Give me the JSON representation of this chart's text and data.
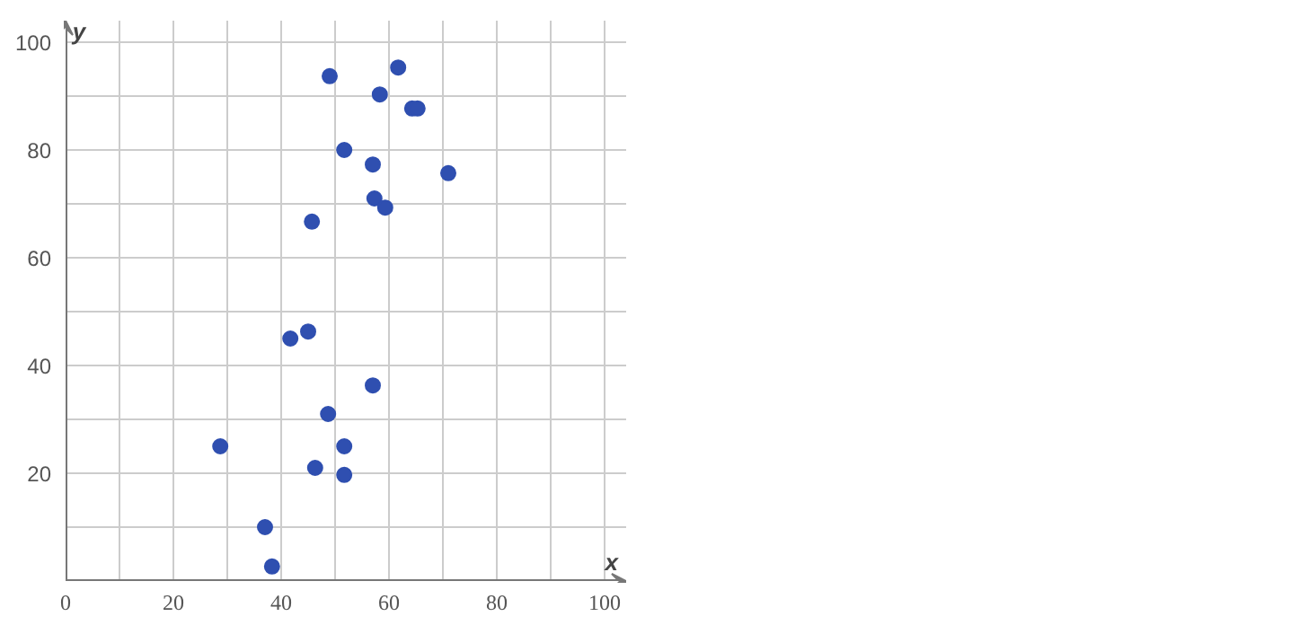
{
  "chart_data": {
    "type": "scatter",
    "xlabel": "x",
    "ylabel": "y",
    "x": [
      49,
      61.7,
      58.3,
      64.3,
      65.3,
      51.7,
      57,
      71,
      57.3,
      59.3,
      45.7,
      45,
      41.7,
      57,
      48.7,
      28.7,
      51.7,
      46.3,
      51.7,
      37,
      38.3
    ],
    "series": [
      {
        "color": "#2f4fb0",
        "values": [
          93.7,
          95.3,
          90.3,
          87.7,
          87.7,
          80,
          77.3,
          75.7,
          71,
          69.3,
          66.7,
          46.3,
          45,
          36.3,
          31,
          25,
          25,
          21,
          19.7,
          10,
          2.7
        ]
      }
    ],
    "xlim": [
      0,
      104
    ],
    "ylim": [
      0,
      104
    ],
    "xticks": [
      {
        "value": 0,
        "label": "0"
      },
      {
        "value": 10,
        "label": null
      },
      20,
      {
        "value": 30,
        "label": null
      },
      40,
      {
        "value": 50,
        "label": null
      },
      60,
      {
        "value": 70,
        "label": null
      },
      80,
      {
        "value": 90,
        "label": null
      },
      100
    ],
    "yticks": [
      {
        "value": 0,
        "label": null
      },
      {
        "value": 10,
        "label": null
      },
      20,
      {
        "value": 30,
        "label": null
      },
      40,
      {
        "value": 50,
        "label": null
      },
      60,
      {
        "value": 70,
        "label": null
      },
      80,
      {
        "value": 90,
        "label": null
      },
      100
    ],
    "grid": true,
    "marker": "circle"
  }
}
